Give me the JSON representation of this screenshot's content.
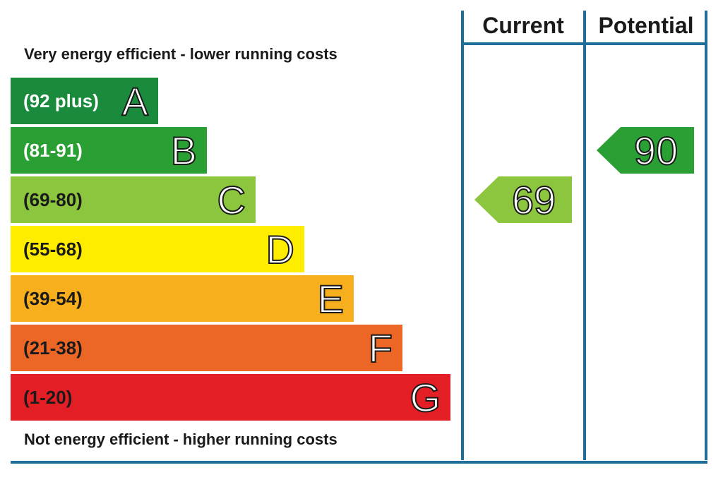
{
  "chart_data": {
    "type": "bar",
    "top_caption": "Very energy efficient - lower running costs",
    "bottom_caption": "Not energy efficient - higher running costs",
    "bands": [
      {
        "letter": "A",
        "range": "(92 plus)",
        "min": 92,
        "max": null,
        "color": "#1a8a3c"
      },
      {
        "letter": "B",
        "range": "(81-91)",
        "min": 81,
        "max": 91,
        "color": "#2aa034"
      },
      {
        "letter": "C",
        "range": "(69-80)",
        "min": 69,
        "max": 80,
        "color": "#8cc63e"
      },
      {
        "letter": "D",
        "range": "(55-68)",
        "min": 55,
        "max": 68,
        "color": "#ffed00"
      },
      {
        "letter": "E",
        "range": "(39-54)",
        "min": 39,
        "max": 54,
        "color": "#f7af1d"
      },
      {
        "letter": "F",
        "range": "(21-38)",
        "min": 21,
        "max": 38,
        "color": "#ec6726"
      },
      {
        "letter": "G",
        "range": "(1-20)",
        "min": 1,
        "max": 20,
        "color": "#e41e25"
      }
    ],
    "columns": [
      "Current",
      "Potential"
    ],
    "ratings": [
      {
        "column": "Current",
        "value": 69,
        "band": "C",
        "color": "#8cc63e"
      },
      {
        "column": "Potential",
        "value": 90,
        "band": "B",
        "color": "#2aa034"
      }
    ],
    "frame_color": "#1f6e99"
  }
}
